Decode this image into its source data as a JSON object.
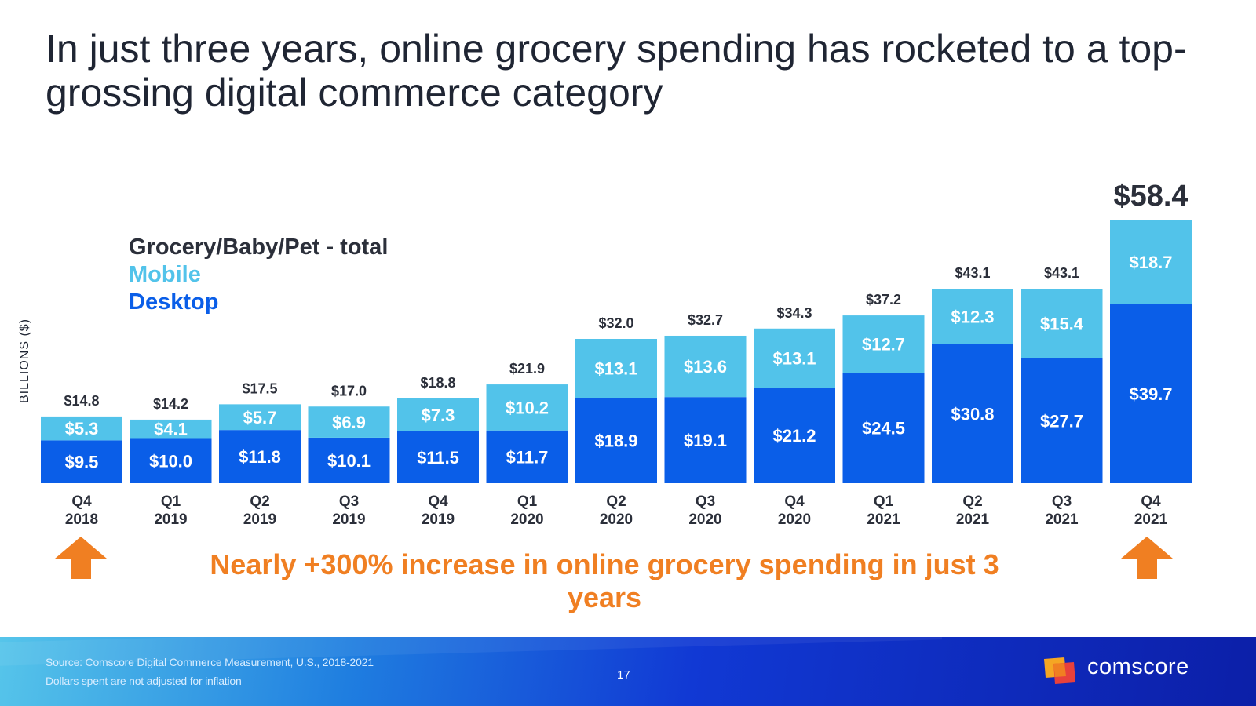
{
  "title": "In just three years, online grocery spending has rocketed to a top-grossing digital commerce category",
  "legend": {
    "total": "Grocery/Baby/Pet - total",
    "mobile": "Mobile",
    "desktop": "Desktop"
  },
  "colors": {
    "desktop": "#0a5ee8",
    "mobile": "#52c3ea",
    "total_label": "#2b2f3a",
    "callout": "#f07f22"
  },
  "callout": "Nearly +300% increase in online grocery spending in just 3 years",
  "footer": {
    "source": "Source: Comscore Digital Commerce Measurement, U.S., 2018-2021",
    "note": "Dollars spent are not adjusted for inflation",
    "page_number": "17",
    "brand": "comscore"
  },
  "chart_data": {
    "type": "bar",
    "stacked": true,
    "ylabel": "BILLIONS ($)",
    "ylim": [
      0,
      60
    ],
    "quarters": [
      "Q4",
      "Q1",
      "Q2",
      "Q3",
      "Q4",
      "Q1",
      "Q2",
      "Q3",
      "Q4",
      "Q1",
      "Q2",
      "Q3",
      "Q4"
    ],
    "years": [
      "2018",
      "2019",
      "2019",
      "2019",
      "2019",
      "2020",
      "2020",
      "2020",
      "2020",
      "2021",
      "2021",
      "2021",
      "2021"
    ],
    "series": [
      {
        "name": "Desktop",
        "values": [
          9.5,
          10.0,
          11.8,
          10.1,
          11.5,
          11.7,
          18.9,
          19.1,
          21.2,
          24.5,
          30.8,
          27.7,
          39.7
        ],
        "labels": [
          "$9.5",
          "$10.0",
          "$11.8",
          "$10.1",
          "$11.5",
          "$11.7",
          "$18.9",
          "$19.1",
          "$21.2",
          "$24.5",
          "$30.8",
          "$27.7",
          "$39.7"
        ]
      },
      {
        "name": "Mobile",
        "values": [
          5.3,
          4.1,
          5.7,
          6.9,
          7.3,
          10.2,
          13.1,
          13.6,
          13.1,
          12.7,
          12.3,
          15.4,
          18.7
        ],
        "labels": [
          "$5.3",
          "$4.1",
          "$5.7",
          "$6.9",
          "$7.3",
          "$10.2",
          "$13.1",
          "$13.6",
          "$13.1",
          "$12.7",
          "$12.3",
          "$15.4",
          "$18.7"
        ]
      }
    ],
    "totals": [
      14.8,
      14.2,
      17.5,
      17.0,
      18.8,
      21.9,
      32.0,
      32.7,
      34.3,
      37.2,
      43.1,
      43.1,
      58.4
    ],
    "total_labels": [
      "$14.8",
      "$14.2",
      "$17.5",
      "$17.0",
      "$18.8",
      "$21.9",
      "$32.0",
      "$32.7",
      "$34.3",
      "$37.2",
      "$43.1",
      "$43.1",
      "$58.4"
    ]
  }
}
